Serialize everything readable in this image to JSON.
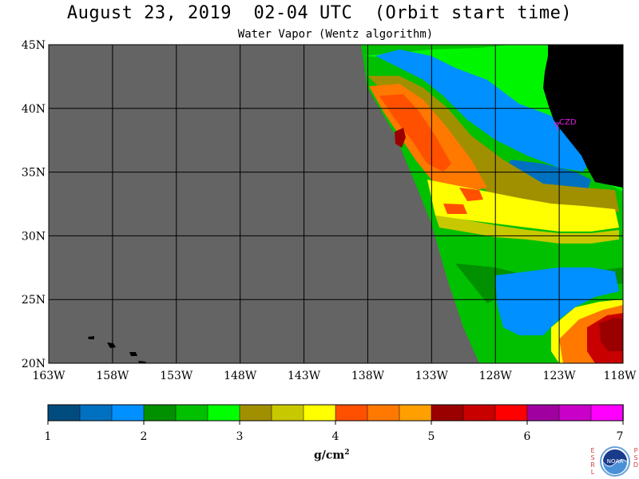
{
  "title": "August 23, 2019  02-04 UTC  (Orbit start time)",
  "subtitle": "Water Vapor (Wentz algorithm)",
  "map": {
    "lon_labels": [
      "163W",
      "158W",
      "153W",
      "148W",
      "143W",
      "138W",
      "133W",
      "128W",
      "123W",
      "118W"
    ],
    "lat_labels": [
      "45N",
      "40N",
      "35N",
      "30N",
      "25N",
      "20N"
    ],
    "station_label": "CZD",
    "colors": {
      "no_data": "#646464",
      "land": "#000000",
      "grid": "#000000",
      "station": "#e020e0"
    }
  },
  "colorbar": {
    "labels": [
      "1",
      "2",
      "3",
      "4",
      "5",
      "6",
      "7"
    ],
    "colors": [
      "#004c7f",
      "#0071c0",
      "#0090ff",
      "#009000",
      "#00c000",
      "#00ff00",
      "#a09000",
      "#c8c800",
      "#ffff00",
      "#ff5000",
      "#ff7800",
      "#ffa000",
      "#9a0000",
      "#c80000",
      "#ff0000",
      "#a000a0",
      "#c800c8",
      "#ff00ff"
    ]
  },
  "units": {
    "base": "g/cm",
    "exponent": "2"
  },
  "logo": {
    "left_letters": [
      "E",
      "S",
      "R",
      "L"
    ],
    "right_letters": [
      "P",
      "S",
      "D"
    ],
    "text": "NOAA"
  }
}
